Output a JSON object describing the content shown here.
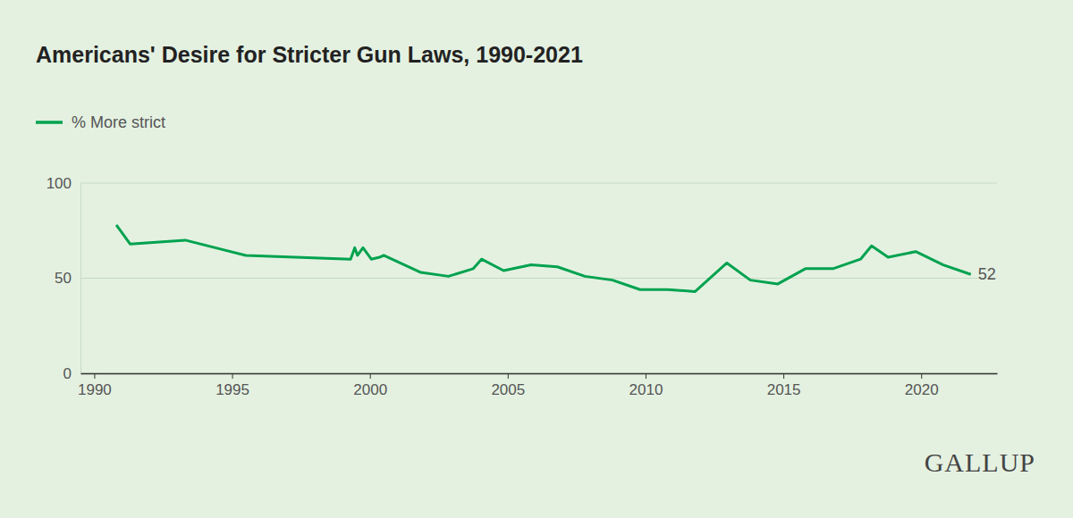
{
  "chart_data": {
    "type": "line",
    "title": "Americans' Desire for Stricter Gun Laws, 1990-2021",
    "source": "GALLUP",
    "x": [
      1990.8,
      1991.3,
      1993.3,
      1995.5,
      1999.3,
      1999.45,
      1999.55,
      1999.75,
      2000.05,
      2000.35,
      2000.5,
      2001.85,
      2002.85,
      2003.75,
      2004.05,
      2004.85,
      2005.85,
      2006.8,
      2007.8,
      2008.8,
      2009.8,
      2010.8,
      2011.8,
      2012.95,
      2013.8,
      2014.8,
      2015.8,
      2016.8,
      2017.8,
      2018.2,
      2018.8,
      2019.8,
      2020.8,
      2021.8
    ],
    "series": [
      {
        "name": "% More strict",
        "color": "#00a24f",
        "values": [
          78,
          68,
          70,
          62,
          60,
          66,
          62,
          66,
          60,
          61,
          62,
          53,
          51,
          55,
          60,
          54,
          57,
          56,
          51,
          49,
          44,
          44,
          43,
          58,
          49,
          47,
          55,
          55,
          60,
          67,
          61,
          64,
          57,
          52
        ]
      }
    ],
    "annotations": [
      {
        "x": 2021.8,
        "y": 52,
        "text": "52"
      }
    ],
    "xlim": [
      1989.5,
      2022.75
    ],
    "xticks": [
      1990,
      1995,
      2000,
      2005,
      2010,
      2015,
      2020
    ],
    "ylim": [
      0,
      100
    ],
    "yticks": [
      0,
      50,
      100
    ],
    "grid": true,
    "legend": "top-left"
  }
}
